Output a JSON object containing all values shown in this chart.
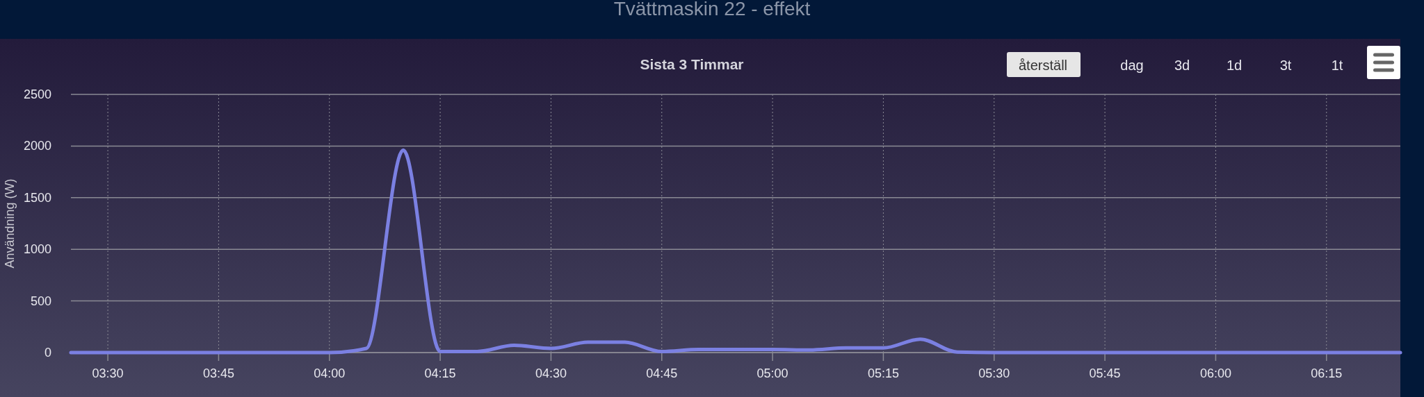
{
  "chart_data": {
    "type": "line",
    "title": "Tvättmaskin 22 - effekt",
    "subtitle": "Sista 3 Timmar",
    "ylabel": "Användning (W)",
    "annotations": [
      "återställ",
      "dag",
      "3d",
      "1d",
      "3t",
      "1t"
    ],
    "x": [
      3.4167,
      3.5,
      3.5833,
      3.6667,
      3.75,
      3.8333,
      3.9167,
      4,
      4.0833,
      4.1667,
      4.25,
      4.3333,
      4.4167,
      4.5,
      4.5833,
      4.6667,
      4.75,
      4.8333,
      4.9167,
      5,
      5.0833,
      5.1667,
      5.25,
      5.3333,
      5.4167,
      5.5,
      5.5833,
      5.6667,
      5.75,
      5.8333,
      5.9167,
      6,
      6.0833,
      6.1667,
      6.25,
      6.3333,
      6.4167
    ],
    "series": [
      {
        "color": "#7b80e2",
        "values": [
          0,
          0,
          0,
          0,
          0,
          0,
          0,
          0,
          40,
          1960,
          10,
          10,
          70,
          40,
          100,
          100,
          10,
          30,
          30,
          30,
          25,
          45,
          45,
          130,
          5,
          0,
          0,
          0,
          0,
          0,
          0,
          0,
          0,
          0,
          0,
          0,
          0
        ]
      }
    ],
    "xlim": [
      3.4167,
      6.4167
    ],
    "xticks": [
      {
        "value": 3.5,
        "label": "03:30"
      },
      {
        "value": 3.75,
        "label": "03:45"
      },
      {
        "value": 4,
        "label": "04:00"
      },
      {
        "value": 4.25,
        "label": "04:15"
      },
      {
        "value": 4.5,
        "label": "04:30"
      },
      {
        "value": 4.75,
        "label": "04:45"
      },
      {
        "value": 5,
        "label": "05:00"
      },
      {
        "value": 5.25,
        "label": "05:15"
      },
      {
        "value": 5.5,
        "label": "05:30"
      },
      {
        "value": 5.75,
        "label": "05:45"
      },
      {
        "value": 6,
        "label": "06:00"
      },
      {
        "value": 6.25,
        "label": "06:15"
      }
    ],
    "ylim": [
      0,
      2500
    ],
    "yticks": [
      0,
      500,
      1000,
      1500,
      2000,
      2500
    ],
    "grid": true,
    "marker": "none",
    "line_style": "solid"
  }
}
